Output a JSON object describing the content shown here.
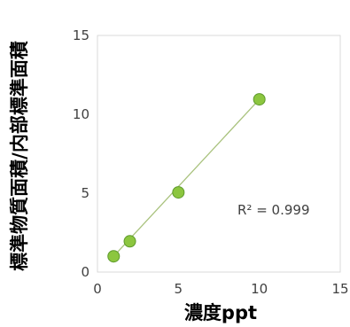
{
  "chart_data": {
    "type": "scatter",
    "title": "",
    "xlabel": "濃度ppt",
    "ylabel": "標準物質面積/内部標準面積",
    "xlim": [
      0,
      15
    ],
    "ylim": [
      0,
      15
    ],
    "x_ticks": [
      "0",
      "5",
      "10",
      "15"
    ],
    "y_ticks": [
      "0",
      "5",
      "10",
      "15"
    ],
    "grid": false,
    "legend": "none",
    "series": [
      {
        "x": [
          1,
          2,
          5,
          10
        ],
        "y": [
          1.0,
          1.95,
          5.05,
          10.95
        ],
        "marker_color": "#8cc63f",
        "marker_edge_color": "#5e9a2c"
      }
    ],
    "trendline": {
      "from": [
        1,
        1.0
      ],
      "to": [
        10,
        10.95
      ],
      "color": "#a9c27d"
    },
    "annotation": "R² = 0.999"
  }
}
